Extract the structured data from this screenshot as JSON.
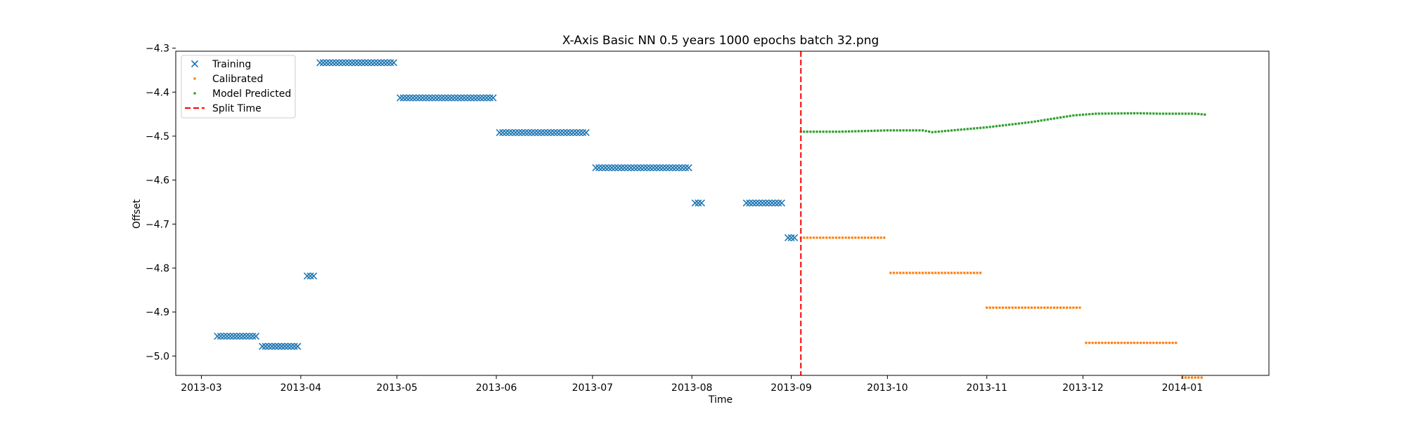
{
  "chart_data": {
    "type": "scatter",
    "title": "X-Axis Basic NN 0.5 years 1000 epochs batch 32.png",
    "xlabel": "Time",
    "ylabel": "Offset",
    "x_type": "date",
    "xlim": [
      "2013-02-21",
      "2014-01-28"
    ],
    "ylim": [
      -5.044,
      -4.307
    ],
    "x_ticks": [
      "2013-03-01",
      "2013-04-01",
      "2013-05-01",
      "2013-06-01",
      "2013-07-01",
      "2013-08-01",
      "2013-09-01",
      "2013-10-01",
      "2013-11-01",
      "2013-12-01",
      "2014-01-01"
    ],
    "x_tick_labels": [
      "2013-03",
      "2013-04",
      "2013-05",
      "2013-06",
      "2013-07",
      "2013-08",
      "2013-09",
      "2013-10",
      "2013-11",
      "2013-12",
      "2014-01"
    ],
    "y_ticks": [
      -4.3,
      -4.4,
      -4.5,
      -4.6,
      -4.7,
      -4.8,
      -4.9,
      -5.0
    ],
    "y_tick_labels": [
      "−4.3",
      "−4.4",
      "−4.5",
      "−4.6",
      "−4.7",
      "−4.8",
      "−4.9",
      "−5.0"
    ],
    "grid": false,
    "legend_position": "top-left",
    "series": [
      {
        "name": "Training",
        "marker": "x",
        "color": "#1f77b4",
        "segments": [
          {
            "start": "2013-03-06",
            "end": "2013-03-18",
            "y": -4.955
          },
          {
            "start": "2013-03-20",
            "end": "2013-03-31",
            "y": -4.978
          },
          {
            "start": "2013-04-03",
            "end": "2013-04-05",
            "y": -4.818
          },
          {
            "start": "2013-04-07",
            "end": "2013-04-30",
            "y": -4.333
          },
          {
            "start": "2013-05-02",
            "end": "2013-05-31",
            "y": -4.413
          },
          {
            "start": "2013-06-02",
            "end": "2013-06-29",
            "y": -4.492
          },
          {
            "start": "2013-07-02",
            "end": "2013-07-31",
            "y": -4.572
          },
          {
            "start": "2013-08-02",
            "end": "2013-08-04",
            "y": -4.652
          },
          {
            "start": "2013-08-18",
            "end": "2013-08-29",
            "y": -4.652
          },
          {
            "start": "2013-08-31",
            "end": "2013-09-02",
            "y": -4.731
          }
        ]
      },
      {
        "name": "Calibrated",
        "marker": "square",
        "color": "#ff7f0e",
        "segments": [
          {
            "start": "2013-09-04",
            "end": "2013-09-30",
            "y": -4.731
          },
          {
            "start": "2013-10-02",
            "end": "2013-10-30",
            "y": -4.811
          },
          {
            "start": "2013-11-01",
            "end": "2013-11-30",
            "y": -4.89
          },
          {
            "start": "2013-12-02",
            "end": "2013-12-30",
            "y": -4.97
          },
          {
            "start": "2014-01-01",
            "end": "2014-01-07",
            "y": -5.049
          }
        ]
      },
      {
        "name": "Model Predicted",
        "marker": "square",
        "color": "#2ca02c",
        "curve": [
          [
            "2013-09-04",
            -4.49
          ],
          [
            "2013-09-16",
            -4.49
          ],
          [
            "2013-10-01",
            -4.487
          ],
          [
            "2013-10-12",
            -4.487
          ],
          [
            "2013-10-15",
            -4.491
          ],
          [
            "2013-11-01",
            -4.48
          ],
          [
            "2013-11-15",
            -4.468
          ],
          [
            "2013-11-28",
            -4.453
          ],
          [
            "2013-12-05",
            -4.449
          ],
          [
            "2013-12-18",
            -4.448
          ],
          [
            "2013-12-25",
            -4.449
          ],
          [
            "2014-01-05",
            -4.449
          ],
          [
            "2014-01-08",
            -4.451
          ]
        ]
      },
      {
        "name": "Split Time",
        "marker": "dashed-line",
        "color": "#ff0000",
        "x": "2013-09-04"
      }
    ]
  }
}
